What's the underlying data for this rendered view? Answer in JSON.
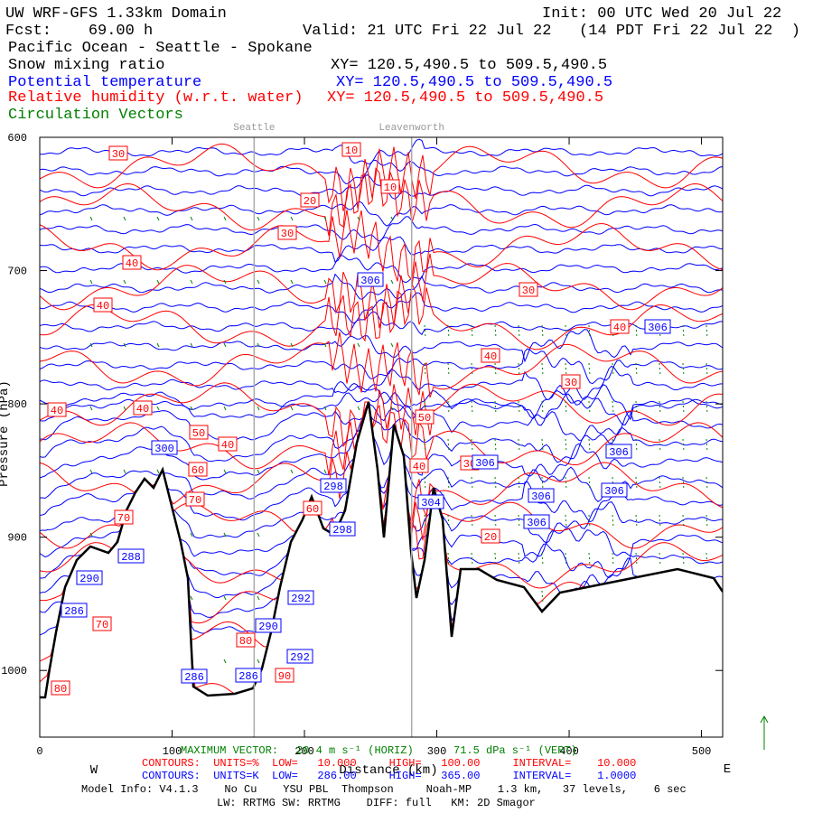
{
  "header": {
    "title": "UW WRF-GFS 1.33km Domain",
    "init": "Init: 00 UTC Wed 20 Jul 22",
    "fcst": "Fcst:    69.00 h",
    "valid": "Valid: 21 UTC Fri 22 Jul 22   (14 PDT Fri 22 Jul 22  )",
    "section": "Pacific Ocean - Seattle - Spokane",
    "fields": [
      {
        "name": "Snow mixing ratio",
        "xy": "XY= 120.5,490.5 to 509.5,490.5",
        "color": "#000000"
      },
      {
        "name": "Potential temperature",
        "xy": "XY= 120.5,490.5 to 509.5,490.5",
        "color": "#0000ff"
      },
      {
        "name": "Relative humidity (w.r.t. water)",
        "xy": "XY= 120.5,490.5 to 509.5,490.5",
        "color": "#ff0000"
      },
      {
        "name": "Circulation Vectors",
        "color": "#008000"
      }
    ]
  },
  "chart_data": {
    "type": "cross-section",
    "x_label": "Distance (km)",
    "y_label": "Pressure (hPa)",
    "xlim": [
      0,
      516
    ],
    "ylim": [
      600,
      1050
    ],
    "xticks": [
      0,
      100,
      200,
      300,
      400,
      500
    ],
    "yticks": [
      600,
      700,
      800,
      900,
      1000
    ],
    "west": "W",
    "east": "E",
    "locations": [
      {
        "name": "Seattle",
        "x": 162
      },
      {
        "name": "Leavenworth",
        "x": 281
      }
    ],
    "rh_labels": [
      30,
      10,
      10,
      20,
      30,
      40,
      30,
      40,
      40,
      40,
      30,
      40,
      40,
      50,
      40,
      50,
      60,
      40,
      70,
      30,
      60,
      20,
      80,
      70,
      90,
      80,
      70
    ],
    "theta_labels": [
      306,
      306,
      300,
      306,
      306,
      306,
      306,
      306,
      298,
      304,
      298,
      290,
      292,
      286,
      290,
      292,
      286,
      286,
      288
    ],
    "rh_color": "#ff0000",
    "theta_color": "#0000ff",
    "vector_color": "#008000"
  },
  "footer": {
    "max_vector": "MAXIMUM VECTOR:",
    "horiz": "20.4 m s⁻¹ (HORIZ)",
    "vert": "71.5 dPa s⁻¹ (VERT)",
    "rh_contours": "CONTOURS:  UNITS=%  LOW=   10.000     HIGH=   100.00     INTERVAL=    10.000",
    "theta_contours": "CONTOURS:  UNITS=K  LOW=   286.00     HIGH=   365.00     INTERVAL=    1.0000",
    "model_info": "Model Info: V4.1.3    No Cu    YSU PBL  Thompson     Noah-MP    1.3 km,   37 levels,    6 sec",
    "physics": "LW: RRTMG SW: RRTMG    DIFF: full   KM: 2D Smagor"
  }
}
